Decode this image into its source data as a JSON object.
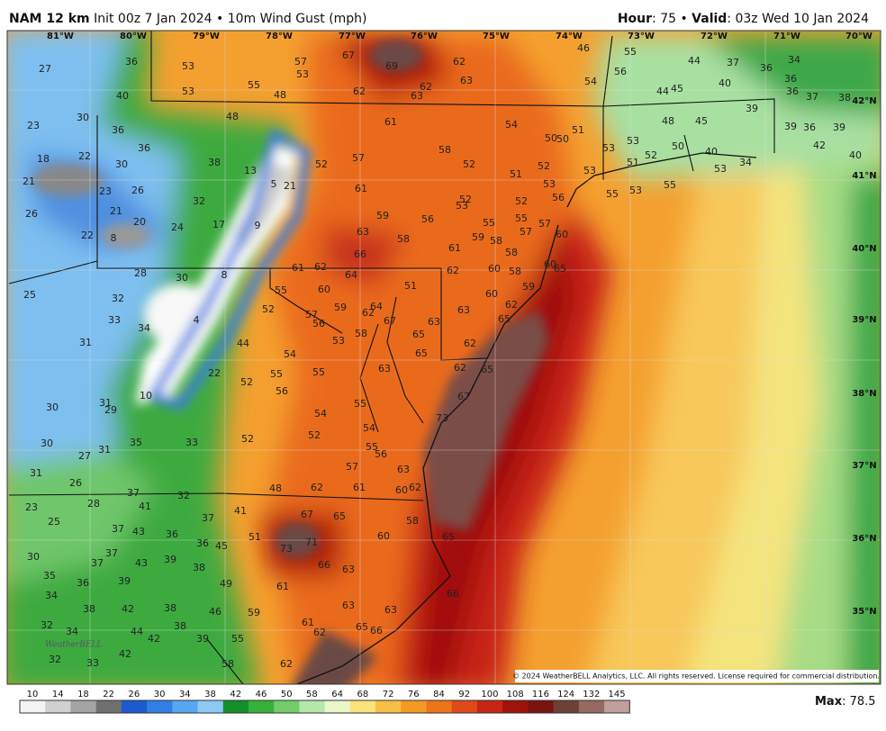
{
  "header": {
    "model": "NAM 12 km",
    "init": "Init 00z 7 Jan 2024 • 10m Wind Gust (mph)",
    "hour_label": "Hour",
    "hour_text": ": 75 • ",
    "valid_label": "Valid",
    "valid_text": ": 03z Wed 10 Jan 2024"
  },
  "map": {
    "longitudes": [
      "81°W",
      "80°W",
      "79°W",
      "78°W",
      "77°W",
      "76°W",
      "75°W",
      "74°W",
      "73°W",
      "72°W",
      "71°W",
      "70°W"
    ],
    "latitudes": [
      "42°N",
      "41°N",
      "40°N",
      "39°N",
      "38°N",
      "37°N",
      "36°N",
      "35°N"
    ],
    "labels": [
      27,
      36,
      53,
      57,
      67,
      69,
      62,
      46,
      55,
      44,
      37,
      36,
      34,
      53,
      55,
      48,
      53,
      40,
      62,
      63,
      62,
      63,
      56,
      54,
      44,
      45,
      40,
      36,
      36,
      37,
      38,
      23,
      30,
      48,
      61,
      54,
      50,
      50,
      51,
      48,
      45,
      39,
      39,
      36,
      39,
      36,
      36,
      18,
      22,
      30,
      38,
      52,
      57,
      58,
      52,
      53,
      53,
      52,
      50,
      40,
      42,
      40,
      21,
      23,
      26,
      13,
      5,
      21,
      61,
      51,
      52,
      53,
      53,
      51,
      53,
      34,
      26,
      21,
      20,
      32,
      17,
      9,
      59,
      56,
      52,
      53,
      52,
      56,
      55,
      53,
      55,
      22,
      8,
      24,
      63,
      58,
      55,
      55,
      57,
      57,
      60,
      59,
      58,
      61,
      66,
      58,
      28,
      30,
      8,
      61,
      62,
      64,
      62,
      60,
      58,
      60,
      65,
      25,
      32,
      55,
      60,
      51,
      60,
      59,
      62,
      33,
      34,
      4,
      52,
      57,
      56,
      59,
      62,
      64,
      67,
      63,
      63,
      65,
      31,
      44,
      54,
      53,
      58,
      65,
      65,
      62,
      22,
      55,
      55,
      63,
      62,
      65,
      52,
      56,
      10,
      31,
      29,
      30,
      55,
      67,
      54,
      73,
      30,
      33,
      52,
      52,
      54,
      55,
      56,
      31,
      27,
      35,
      31,
      26,
      57,
      63,
      48,
      62,
      61,
      60,
      62,
      37,
      32,
      23,
      28,
      41,
      37,
      41,
      67,
      65,
      58,
      25,
      37,
      43,
      36,
      51,
      73,
      71,
      60,
      65,
      30,
      37,
      36,
      45,
      37,
      43,
      39,
      38,
      66,
      63,
      35,
      36,
      39,
      49,
      61,
      66,
      34,
      38,
      42,
      38,
      46,
      59,
      63,
      63,
      32,
      34,
      44,
      38,
      61,
      62,
      65,
      66,
      42,
      39,
      55,
      42,
      58,
      62,
      32,
      33
    ],
    "logo": "WeatherBELL",
    "copyright": "© 2024 WeatherBELL Analytics, LLC. All rights reserved. License required for commercial distribution."
  },
  "colorbar": {
    "ticks": [
      10,
      14,
      18,
      22,
      26,
      30,
      34,
      38,
      42,
      46,
      50,
      58,
      64,
      68,
      72,
      76,
      84,
      92,
      100,
      108,
      116,
      124,
      132,
      145
    ],
    "colors": [
      "#f4f4f4",
      "#d0d0d0",
      "#a4a4a4",
      "#707070",
      "#1c5ad0",
      "#2f7fe4",
      "#58a6f0",
      "#8ccaf4",
      "#14902a",
      "#36b23a",
      "#72cc68",
      "#b4e8a8",
      "#eaf7c8",
      "#fbe27a",
      "#f7bf45",
      "#f49a22",
      "#ee7418",
      "#de4a1a",
      "#c62612",
      "#a0120a",
      "#7a1410",
      "#6e4038",
      "#966a60",
      "#bfa09a"
    ],
    "max_label": "Max",
    "max_text": ": 78.5"
  }
}
